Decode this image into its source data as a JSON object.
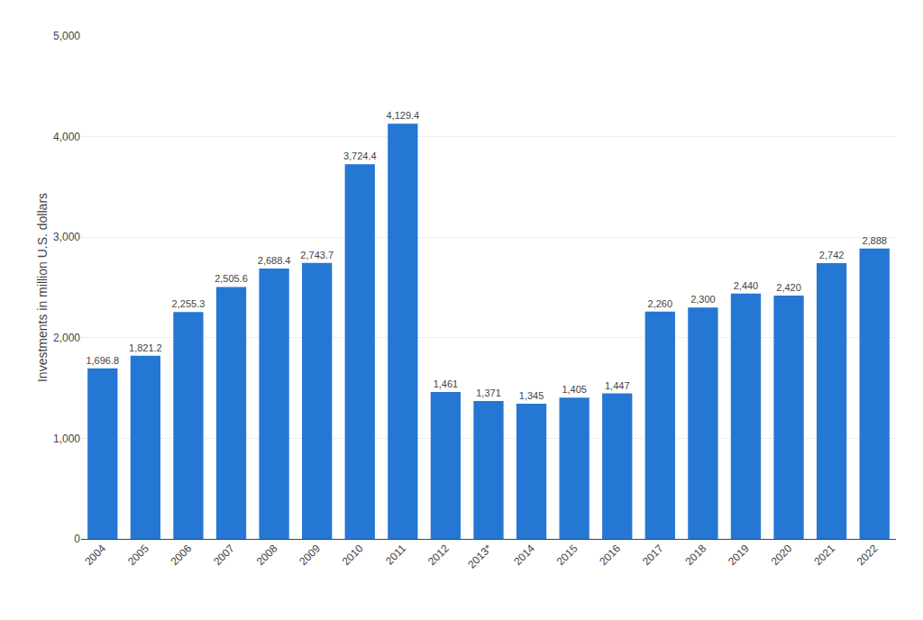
{
  "chart_data": {
    "type": "bar",
    "categories": [
      "2004",
      "2005",
      "2006",
      "2007",
      "2008",
      "2009",
      "2010",
      "2011",
      "2012",
      "2013*",
      "2014",
      "2015",
      "2016",
      "2017",
      "2018",
      "2019",
      "2020",
      "2021",
      "2022"
    ],
    "values": [
      1696.8,
      1821.2,
      2255.3,
      2505.6,
      2688.4,
      2743.7,
      3724.4,
      4129.4,
      1461.0,
      1371.0,
      1345.0,
      1405.0,
      1447.0,
      2260.0,
      2300.0,
      2440.0,
      2420.0,
      2742.0,
      2888.0
    ],
    "value_labels": [
      "1,696.8",
      "1,821.2",
      "2,255.3",
      "2,505.6",
      "2,688.4",
      "2,743.7",
      "3,724.4",
      "4,129.4",
      "1,461",
      "1,371",
      "1,345",
      "1,405",
      "1,447",
      "2,260",
      "2,300",
      "2,440",
      "2,420",
      "2,742",
      "2,888"
    ],
    "data_labels": true,
    "color": "#2577d4",
    "ylabel": "Investments in million U.S. dollars",
    "ylim": [
      0,
      5000
    ],
    "yticks": [
      0,
      {
        "value": 1000,
        "label": "1,000"
      },
      {
        "value": 2000,
        "label": "2,000"
      },
      {
        "value": 3000,
        "label": "3,000"
      },
      {
        "value": 4000,
        "label": "4,000"
      },
      {
        "value": 5000,
        "label": "5,000"
      }
    ],
    "grid": true
  }
}
